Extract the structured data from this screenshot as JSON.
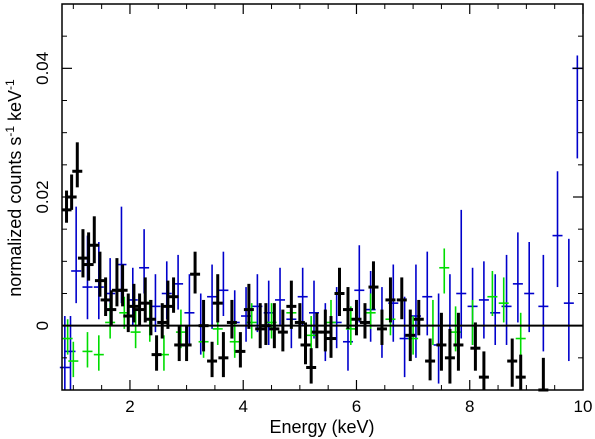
{
  "chart_data": {
    "type": "scatter",
    "xlabel": "Energy (keV)",
    "ylabel_main": "normalized counts s",
    "ylabel_sup1": "-1",
    "ylabel_mid": " keV",
    "ylabel_sup2": "-1",
    "xlim": [
      0.8,
      10.0
    ],
    "ylim": [
      -0.01,
      0.05
    ],
    "x_log": false,
    "grid": false,
    "x_ticks": [
      2,
      4,
      6,
      8,
      10
    ],
    "y_ticks": [
      0,
      0.02,
      0.04
    ],
    "x_tick_labels": [
      "2",
      "4",
      "6",
      "8",
      "10"
    ],
    "y_tick_labels": [
      "0",
      "0.02",
      "0.04"
    ],
    "zero_line": 0,
    "series": [
      {
        "color": "#000000",
        "points": [
          [
            0.88,
            0.018,
            0.003,
            0.002
          ],
          [
            0.97,
            0.02,
            0.0035,
            0.002
          ],
          [
            1.07,
            0.024,
            0.0045,
            0.0025
          ],
          [
            1.17,
            0.0105,
            0.0045,
            0.003
          ],
          [
            1.27,
            0.0095,
            0.005,
            0.0025
          ],
          [
            1.37,
            0.0125,
            0.0045,
            0.0028
          ],
          [
            1.47,
            0.007,
            0.0045,
            0.0025
          ],
          [
            1.57,
            0.004,
            0.0035,
            0.0025
          ],
          [
            1.67,
            0.0025,
            0.003,
            0.0025
          ],
          [
            1.77,
            0.0055,
            0.005,
            0.0025
          ],
          [
            1.87,
            0.0055,
            0.004,
            0.0025
          ],
          [
            1.97,
            0.0015,
            0.0035,
            0.0025
          ],
          [
            2.07,
            0.003,
            0.0035,
            0.0025
          ],
          [
            2.17,
            0.0025,
            0.0025,
            0.0025
          ],
          [
            2.27,
            0.0035,
            0.004,
            0.003
          ],
          [
            2.37,
            0.001,
            0.003,
            0.0025
          ],
          [
            2.47,
            -0.0045,
            0.003,
            0.0025
          ],
          [
            2.57,
            0.0005,
            0.003,
            0.0025
          ],
          [
            2.67,
            0.003,
            0.004,
            0.0035
          ],
          [
            2.77,
            0.0045,
            0.003,
            0.0025
          ],
          [
            2.87,
            -0.003,
            0.003,
            0.0025
          ],
          [
            3.0,
            -0.003,
            0.003,
            0.0025
          ],
          [
            3.15,
            0.008,
            0.0035,
            0.003
          ],
          [
            3.3,
            0.0,
            0.004,
            0.004
          ],
          [
            3.45,
            -0.0055,
            0.003,
            0.0025
          ],
          [
            3.55,
            0.0035,
            0.0045,
            0.003
          ],
          [
            3.65,
            -0.005,
            0.004,
            0.003
          ],
          [
            3.8,
            0.0005,
            0.0035,
            0.0025
          ],
          [
            3.95,
            -0.004,
            0.003,
            0.0025
          ],
          [
            4.1,
            0.0025,
            0.004,
            0.003
          ],
          [
            4.3,
            -0.0005,
            0.004,
            0.003
          ],
          [
            4.4,
            0.0,
            0.0035,
            0.003
          ],
          [
            4.55,
            -0.0005,
            0.004,
            0.003
          ],
          [
            4.7,
            -0.001,
            0.0035,
            0.003
          ],
          [
            4.85,
            0.003,
            0.004,
            0.0035
          ],
          [
            5.0,
            0.0005,
            0.003,
            0.0025
          ],
          [
            5.1,
            -0.003,
            0.0035,
            0.003
          ],
          [
            5.2,
            -0.0065,
            0.003,
            0.0025
          ],
          [
            5.3,
            -0.001,
            0.003,
            0.0025
          ],
          [
            5.45,
            -0.001,
            0.0035,
            0.003
          ],
          [
            5.55,
            -0.002,
            0.0035,
            0.003
          ],
          [
            5.7,
            0.005,
            0.004,
            0.0035
          ],
          [
            5.85,
            0.0025,
            0.0035,
            0.003
          ],
          [
            6.0,
            0.001,
            0.003,
            0.0025
          ],
          [
            6.15,
            0.0005,
            0.003,
            0.0025
          ],
          [
            6.3,
            0.006,
            0.004,
            0.0035
          ],
          [
            6.45,
            -0.0005,
            0.003,
            0.0025
          ],
          [
            6.6,
            0.004,
            0.0035,
            0.0035
          ],
          [
            6.8,
            0.004,
            0.0035,
            0.003
          ],
          [
            6.95,
            -0.0015,
            0.004,
            0.004
          ],
          [
            7.1,
            0.001,
            0.003,
            0.0025
          ],
          [
            7.3,
            -0.0055,
            0.0035,
            0.003
          ],
          [
            7.5,
            -0.003,
            0.005,
            0.004
          ],
          [
            7.65,
            -0.005,
            0.0045,
            0.004
          ],
          [
            7.8,
            -0.003,
            0.005,
            0.004
          ],
          [
            8.1,
            -0.0035,
            0.004,
            0.0035
          ],
          [
            8.25,
            -0.008,
            0.004,
            0.003
          ],
          [
            8.75,
            -0.0055,
            0.0035,
            0.004
          ],
          [
            8.9,
            -0.008,
            0.0035,
            0.003
          ],
          [
            9.3,
            -0.01,
            0.005,
            0.004
          ]
        ]
      },
      {
        "color": "#0000cc",
        "points": [
          [
            0.85,
            -0.0065,
            0.008,
            0.006
          ],
          [
            0.95,
            -0.004,
            0.0055,
            0.006
          ],
          [
            1.05,
            0.0085,
            0.01,
            0.005
          ],
          [
            1.25,
            0.006,
            0.008,
            0.005
          ],
          [
            1.45,
            0.006,
            0.007,
            0.005
          ],
          [
            1.65,
            0.005,
            0.0055,
            0.005
          ],
          [
            1.85,
            0.0095,
            0.009,
            0.006
          ],
          [
            2.05,
            0.004,
            0.005,
            0.004
          ],
          [
            2.25,
            0.009,
            0.006,
            0.004
          ],
          [
            2.45,
            0.003,
            0.005,
            0.004
          ],
          [
            2.65,
            0.005,
            0.005,
            0.004
          ],
          [
            2.85,
            0.0065,
            0.0045,
            0.004
          ],
          [
            3.05,
            0.002,
            0.006,
            0.005
          ],
          [
            3.25,
            0.0,
            0.005,
            0.0045
          ],
          [
            3.45,
            0.0045,
            0.005,
            0.005
          ],
          [
            3.65,
            0.0055,
            0.006,
            0.004
          ],
          [
            3.85,
            0.0005,
            0.005,
            0.0045
          ],
          [
            4.05,
            0.0015,
            0.0045,
            0.004
          ],
          [
            4.25,
            0.003,
            0.005,
            0.004
          ],
          [
            4.45,
            0.002,
            0.005,
            0.005
          ],
          [
            4.65,
            0.004,
            0.005,
            0.004
          ],
          [
            4.85,
            0.001,
            0.005,
            0.0045
          ],
          [
            5.05,
            0.0045,
            0.0045,
            0.0045
          ],
          [
            5.25,
            0.002,
            0.005,
            0.004
          ],
          [
            5.45,
            -0.001,
            0.0045,
            0.0045
          ],
          [
            5.65,
            0.0005,
            0.0055,
            0.004
          ],
          [
            5.85,
            -0.0025,
            0.005,
            0.0045
          ],
          [
            6.05,
            0.0055,
            0.007,
            0.005
          ],
          [
            6.25,
            0.0025,
            0.006,
            0.005
          ],
          [
            6.45,
            0.0,
            0.006,
            0.005
          ],
          [
            6.65,
            0.0035,
            0.006,
            0.006
          ],
          [
            6.85,
            -0.002,
            0.0065,
            0.006
          ],
          [
            7.05,
            0.0015,
            0.008,
            0.0065
          ],
          [
            7.25,
            0.0045,
            0.007,
            0.006
          ],
          [
            7.45,
            -0.003,
            0.008,
            0.006
          ],
          [
            7.65,
            0.0,
            0.008,
            0.006
          ],
          [
            7.85,
            0.005,
            0.013,
            0.007
          ],
          [
            8.05,
            0.003,
            0.006,
            0.006
          ],
          [
            8.25,
            0.004,
            0.006,
            0.006
          ],
          [
            8.45,
            0.002,
            0.006,
            0.005
          ],
          [
            8.65,
            0.003,
            0.008,
            0.006
          ],
          [
            8.85,
            0.0065,
            0.008,
            0.006
          ],
          [
            9.05,
            0.005,
            0.008,
            0.006
          ],
          [
            9.3,
            0.003,
            0.008,
            0.007
          ],
          [
            9.55,
            0.014,
            0.01,
            0.008
          ],
          [
            9.75,
            0.0035,
            0.01,
            0.009
          ],
          [
            9.9,
            0.04,
            0.002,
            0.014
          ]
        ]
      },
      {
        "color": "#00dd00",
        "points": [
          [
            0.9,
            -0.002,
            0.003,
            0.0025
          ],
          [
            1.0,
            -0.0055,
            0.003,
            0.0025
          ],
          [
            1.25,
            -0.004,
            0.003,
            0.0025
          ],
          [
            1.45,
            -0.0045,
            0.003,
            0.0025
          ],
          [
            1.65,
            0.0005,
            0.003,
            0.0025
          ],
          [
            1.9,
            0.002,
            0.0025,
            0.0025
          ],
          [
            2.1,
            -0.001,
            0.0035,
            0.0025
          ],
          [
            2.35,
            0.0,
            0.004,
            0.0025
          ],
          [
            2.6,
            -0.0045,
            0.003,
            0.0025
          ],
          [
            2.9,
            -0.001,
            0.0035,
            0.0025
          ],
          [
            3.3,
            -0.0025,
            0.003,
            0.0025
          ],
          [
            3.55,
            -0.0005,
            0.004,
            0.0025
          ],
          [
            3.85,
            -0.0025,
            0.003,
            0.0025
          ],
          [
            4.15,
            0.0005,
            0.003,
            0.0025
          ],
          [
            4.5,
            0.0005,
            0.003,
            0.0025
          ],
          [
            4.85,
            0.002,
            0.003,
            0.0025
          ],
          [
            5.2,
            -0.0015,
            0.003,
            0.0025
          ],
          [
            5.55,
            0.0005,
            0.0035,
            0.0025
          ],
          [
            5.9,
            -0.0005,
            0.0035,
            0.0025
          ],
          [
            6.25,
            0.002,
            0.003,
            0.0025
          ],
          [
            6.6,
            0.001,
            0.0035,
            0.0025
          ],
          [
            7.0,
            -0.002,
            0.0035,
            0.0025
          ],
          [
            7.35,
            0.0,
            0.004,
            0.003
          ],
          [
            7.55,
            0.009,
            0.003,
            0.004
          ],
          [
            7.75,
            -0.001,
            0.004,
            0.003
          ],
          [
            8.05,
            0.0,
            0.004,
            0.003
          ],
          [
            8.4,
            0.0045,
            0.004,
            0.003
          ],
          [
            8.6,
            0.0035,
            0.004,
            0.003
          ],
          [
            8.9,
            -0.002,
            0.004,
            0.003
          ]
        ]
      }
    ]
  }
}
